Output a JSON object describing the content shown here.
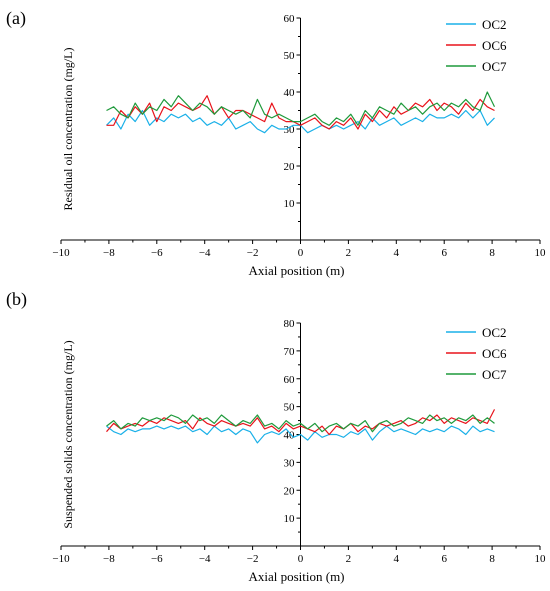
{
  "panels": [
    {
      "label": "(a)",
      "chart_data": {
        "type": "line",
        "title": "",
        "xlabel": "Axial position (m)",
        "ylabel": "Residual oil concentration (mg/L)",
        "xlim": [
          -10,
          10
        ],
        "ylim": [
          0,
          60
        ],
        "xticks": [
          -10,
          -8,
          -6,
          -4,
          -2,
          0,
          2,
          4,
          6,
          8,
          10
        ],
        "yticks": [
          10,
          20,
          30,
          40,
          50,
          60
        ],
        "grid": false,
        "legend": "top-right",
        "x": [
          -8.1,
          -7.8,
          -7.5,
          -7.2,
          -6.9,
          -6.6,
          -6.3,
          -6.0,
          -5.7,
          -5.4,
          -5.1,
          -4.8,
          -4.5,
          -4.2,
          -3.9,
          -3.6,
          -3.3,
          -3.0,
          -2.7,
          -2.4,
          -2.1,
          -1.8,
          -1.5,
          -1.2,
          -0.9,
          -0.6,
          -0.3,
          0.0,
          0.3,
          0.6,
          0.9,
          1.2,
          1.5,
          1.8,
          2.1,
          2.4,
          2.7,
          3.0,
          3.3,
          3.6,
          3.9,
          4.2,
          4.5,
          4.8,
          5.1,
          5.4,
          5.7,
          6.0,
          6.3,
          6.6,
          6.9,
          7.2,
          7.5,
          7.8,
          8.1
        ],
        "series": [
          {
            "name": "OC2",
            "color": "#1ab0e8",
            "values": [
              31,
              33,
              30,
              34,
              32,
              35,
              31,
              33,
              32,
              34,
              33,
              34,
              32,
              33,
              31,
              32,
              31,
              33,
              30,
              31,
              32,
              30,
              29,
              31,
              30,
              30,
              31,
              31,
              29,
              30,
              31,
              30,
              31,
              30,
              31,
              32,
              30,
              33,
              31,
              32,
              33,
              31,
              32,
              33,
              32,
              34,
              33,
              33,
              34,
              33,
              35,
              33,
              35,
              31,
              33
            ]
          },
          {
            "name": "OC6",
            "color": "#e8131b",
            "values": [
              31,
              31,
              35,
              33,
              36,
              34,
              37,
              32,
              36,
              35,
              37,
              36,
              35,
              36,
              39,
              34,
              36,
              33,
              35,
              35,
              34,
              33,
              32,
              37,
              33,
              32,
              32,
              31,
              32,
              33,
              31,
              30,
              32,
              31,
              33,
              30,
              34,
              32,
              35,
              33,
              36,
              34,
              35,
              37,
              36,
              38,
              35,
              37,
              36,
              34,
              37,
              35,
              38,
              36,
              35
            ]
          },
          {
            "name": "OC7",
            "color": "#1f9a3c",
            "values": [
              35,
              36,
              34,
              33,
              37,
              34,
              36,
              35,
              38,
              36,
              39,
              37,
              35,
              37,
              36,
              34,
              36,
              35,
              34,
              35,
              33,
              38,
              34,
              33,
              34,
              33,
              32,
              32,
              33,
              34,
              32,
              31,
              33,
              32,
              34,
              31,
              35,
              33,
              36,
              35,
              34,
              37,
              35,
              36,
              34,
              36,
              37,
              35,
              37,
              36,
              38,
              36,
              35,
              40,
              36
            ]
          }
        ]
      }
    },
    {
      "label": "(b)",
      "chart_data": {
        "type": "line",
        "title": "",
        "xlabel": "Axial position (m)",
        "ylabel": "Suspended solids concentration (mg/L)",
        "xlim": [
          -10,
          10
        ],
        "ylim": [
          0,
          80
        ],
        "xticks": [
          -10,
          -8,
          -6,
          -4,
          -2,
          0,
          2,
          4,
          6,
          8,
          10
        ],
        "yticks": [
          10,
          20,
          30,
          40,
          50,
          60,
          70,
          80
        ],
        "grid": false,
        "legend": "top-right",
        "x": [
          -8.1,
          -7.8,
          -7.5,
          -7.2,
          -6.9,
          -6.6,
          -6.3,
          -6.0,
          -5.7,
          -5.4,
          -5.1,
          -4.8,
          -4.5,
          -4.2,
          -3.9,
          -3.6,
          -3.3,
          -3.0,
          -2.7,
          -2.4,
          -2.1,
          -1.8,
          -1.5,
          -1.2,
          -0.9,
          -0.6,
          -0.3,
          0.0,
          0.3,
          0.6,
          0.9,
          1.2,
          1.5,
          1.8,
          2.1,
          2.4,
          2.7,
          3.0,
          3.3,
          3.6,
          3.9,
          4.2,
          4.5,
          4.8,
          5.1,
          5.4,
          5.7,
          6.0,
          6.3,
          6.6,
          6.9,
          7.2,
          7.5,
          7.8,
          8.1
        ],
        "series": [
          {
            "name": "OC2",
            "color": "#1ab0e8",
            "values": [
              43,
              41,
              40,
              42,
              41,
              42,
              42,
              43,
              42,
              43,
              42,
              43,
              41,
              42,
              40,
              43,
              41,
              42,
              40,
              42,
              41,
              37,
              40,
              41,
              40,
              42,
              39,
              40,
              38,
              41,
              39,
              40,
              40,
              39,
              41,
              40,
              42,
              38,
              41,
              43,
              41,
              42,
              41,
              40,
              42,
              41,
              42,
              41,
              43,
              42,
              40,
              43,
              41,
              42,
              41
            ]
          },
          {
            "name": "OC6",
            "color": "#e8131b",
            "values": [
              41,
              44,
              42,
              43,
              44,
              43,
              45,
              44,
              46,
              45,
              44,
              45,
              42,
              46,
              44,
              43,
              45,
              44,
              43,
              44,
              43,
              46,
              42,
              43,
              41,
              44,
              42,
              43,
              42,
              41,
              43,
              40,
              43,
              42,
              44,
              41,
              43,
              42,
              44,
              43,
              44,
              45,
              43,
              44,
              46,
              45,
              47,
              44,
              46,
              45,
              44,
              46,
              45,
              44,
              49
            ]
          },
          {
            "name": "OC7",
            "color": "#1f9a3c",
            "values": [
              43,
              45,
              42,
              44,
              43,
              46,
              45,
              46,
              45,
              47,
              46,
              44,
              47,
              45,
              46,
              44,
              47,
              45,
              43,
              45,
              44,
              47,
              43,
              44,
              42,
              45,
              43,
              44,
              42,
              44,
              41,
              43,
              44,
              42,
              44,
              43,
              45,
              41,
              44,
              45,
              43,
              44,
              46,
              45,
              44,
              47,
              45,
              46,
              44,
              46,
              45,
              47,
              44,
              46,
              44
            ]
          }
        ]
      }
    }
  ]
}
